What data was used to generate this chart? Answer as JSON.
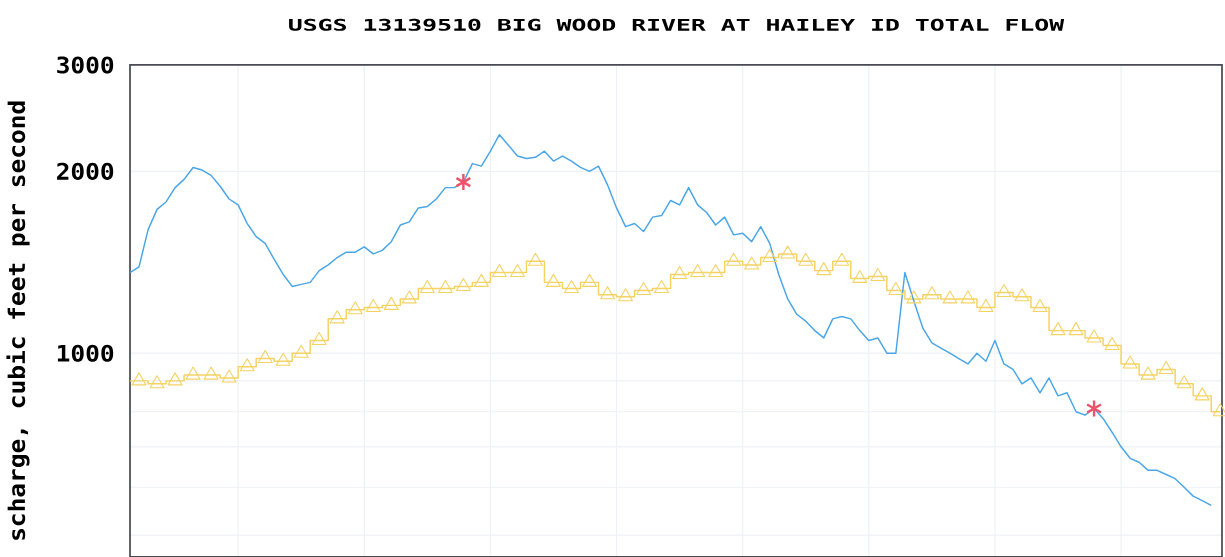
{
  "chart_data": {
    "type": "line",
    "title": "USGS 13139510 BIG WOOD RIVER AT HAILEY ID TOTAL FLOW",
    "ylabel": "scharge, cubic feet per second",
    "log": "y",
    "grid": true,
    "tick_labels": "y",
    "categories": [
      null,
      null,
      null,
      null,
      null,
      null,
      null,
      null,
      null,
      null,
      null,
      null,
      null,
      null,
      null,
      null,
      null,
      null,
      null,
      null,
      null,
      null,
      null,
      null,
      null,
      null,
      null,
      null,
      null,
      null,
      null,
      null,
      null,
      null,
      null,
      null,
      null,
      null,
      null,
      null,
      null,
      null,
      null,
      null,
      null,
      null,
      null,
      null,
      null,
      null,
      null,
      null,
      null,
      null,
      null,
      null,
      null,
      null,
      null,
      null,
      null,
      null,
      null,
      null,
      null,
      null,
      null,
      null,
      null,
      null,
      null,
      null,
      null,
      null,
      null,
      null,
      null,
      null,
      null,
      null,
      null,
      null,
      null,
      null,
      null,
      null,
      null,
      null,
      null,
      null,
      null,
      null,
      null,
      null,
      null,
      null,
      null,
      null,
      null,
      null,
      null,
      null,
      null,
      null,
      null,
      null,
      null,
      null,
      null,
      null,
      null,
      null,
      null,
      null,
      null,
      null,
      null,
      null,
      null,
      null,
      null,
      null
    ],
    "ylim": [
      460,
      3000
    ],
    "yticks": [
      {
        "value": 500,
        "label": null
      },
      {
        "value": 600,
        "label": null
      },
      {
        "value": 700,
        "label": null
      },
      {
        "value": 800,
        "label": null
      },
      {
        "value": 900,
        "label": null
      },
      1000,
      2000,
      3000
    ],
    "series": [
      {
        "type": "step",
        "marker": "triangle",
        "color": "#f5d264",
        "values": [
          900,
          900,
          890,
          890,
          900,
          900,
          920,
          920,
          920,
          920,
          910,
          910,
          950,
          950,
          980,
          980,
          970,
          970,
          1000,
          1000,
          1050,
          1050,
          1140,
          1140,
          1180,
          1180,
          1190,
          1190,
          1200,
          1200,
          1230,
          1230,
          1280,
          1280,
          1280,
          1280,
          1290,
          1290,
          1310,
          1310,
          1360,
          1360,
          1360,
          1360,
          1420,
          1420,
          1310,
          1310,
          1280,
          1280,
          1310,
          1310,
          1250,
          1250,
          1240,
          1240,
          1270,
          1270,
          1280,
          1280,
          1350,
          1350,
          1360,
          1360,
          1360,
          1360,
          1420,
          1420,
          1400,
          1400,
          1440,
          1440,
          1460,
          1460,
          1420,
          1420,
          1370,
          1370,
          1420,
          1420,
          1330,
          1330,
          1340,
          1340,
          1270,
          1270,
          1230,
          1230,
          1250,
          1250,
          1230,
          1230,
          1230,
          1230,
          1190,
          1190,
          1260,
          1260,
          1240,
          1240,
          1190,
          1190,
          1090,
          1090,
          1090,
          1090,
          1060,
          1060,
          1030,
          1030,
          960,
          960,
          920,
          920,
          940,
          940,
          890,
          890,
          850,
          850,
          800,
          800
        ]
      },
      {
        "marker": "none",
        "color": "#4aa6e6",
        "values": [
          1360,
          1390,
          1600,
          1730,
          1780,
          1880,
          1940,
          2030,
          2010,
          1970,
          1890,
          1800,
          1760,
          1640,
          1560,
          1520,
          1430,
          1350,
          1290,
          1300,
          1310,
          1370,
          1400,
          1440,
          1470,
          1470,
          1500,
          1460,
          1480,
          1530,
          1630,
          1650,
          1740,
          1750,
          1800,
          1880,
          1880,
          1920,
          2060,
          2040,
          2160,
          2300,
          2210,
          2120,
          2100,
          2110,
          2160,
          2080,
          2120,
          2080,
          2030,
          2000,
          2040,
          1900,
          1740,
          1620,
          1640,
          1590,
          1680,
          1690,
          1790,
          1760,
          1880,
          1760,
          1710,
          1630,
          1680,
          1570,
          1580,
          1530,
          1620,
          1520,
          1350,
          1230,
          1160,
          1130,
          1090,
          1060,
          1140,
          1150,
          1140,
          1090,
          1050,
          1060,
          1000,
          1000,
          1360,
          1220,
          1100,
          1040,
          1020,
          1000,
          980,
          960,
          1000,
          970,
          1050,
          960,
          940,
          890,
          910,
          860,
          910,
          850,
          860,
          800,
          790,
          810,
          780,
          740,
          700,
          670,
          660,
          640,
          640,
          630,
          620,
          600,
          580,
          570,
          560,
          null
        ]
      },
      {
        "type": "scatter",
        "marker": "cross",
        "color": "#f0506a",
        "values": [
          null,
          null,
          null,
          null,
          null,
          null,
          null,
          null,
          null,
          null,
          null,
          null,
          null,
          null,
          null,
          null,
          null,
          null,
          null,
          null,
          null,
          null,
          null,
          null,
          null,
          null,
          null,
          null,
          null,
          null,
          null,
          null,
          null,
          null,
          null,
          null,
          null,
          1920,
          null,
          null,
          null,
          null,
          null,
          null,
          null,
          null,
          null,
          null,
          null,
          null,
          null,
          null,
          null,
          null,
          null,
          null,
          null,
          null,
          null,
          null,
          null,
          null,
          null,
          null,
          null,
          null,
          null,
          null,
          null,
          null,
          null,
          null,
          null,
          null,
          null,
          null,
          null,
          null,
          null,
          null,
          null,
          null,
          null,
          null,
          null,
          null,
          null,
          null,
          null,
          null,
          null,
          null,
          null,
          null,
          null,
          null,
          null,
          null,
          null,
          null,
          null,
          null,
          null,
          null,
          null,
          null,
          null,
          810,
          null,
          null,
          null,
          null,
          null,
          null,
          null,
          null,
          null,
          null,
          null,
          null,
          null,
          null
        ]
      }
    ]
  }
}
